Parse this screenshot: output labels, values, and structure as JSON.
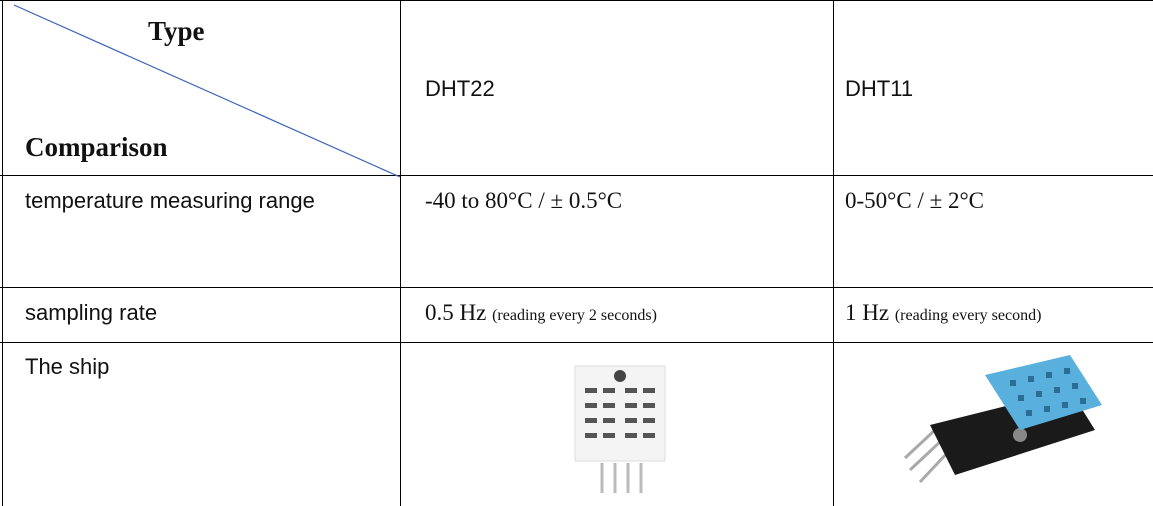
{
  "table": {
    "corner": {
      "top": "Type",
      "bottom": "Comparison"
    },
    "columns": [
      "DHT22",
      "DHT11"
    ],
    "rows": [
      {
        "label": "temperature measuring range",
        "cells": [
          {
            "main": "-40 to 80°C / ± 0.5°C"
          },
          {
            "main": "0-50°C / ± 2°C"
          }
        ]
      },
      {
        "label": "sampling rate",
        "cells": [
          {
            "main": "0.5 Hz",
            "note": "(reading every 2 seconds)"
          },
          {
            "main": "1 Hz",
            "note": "(reading every second)"
          }
        ]
      },
      {
        "label": "The ship",
        "cells": []
      }
    ]
  }
}
